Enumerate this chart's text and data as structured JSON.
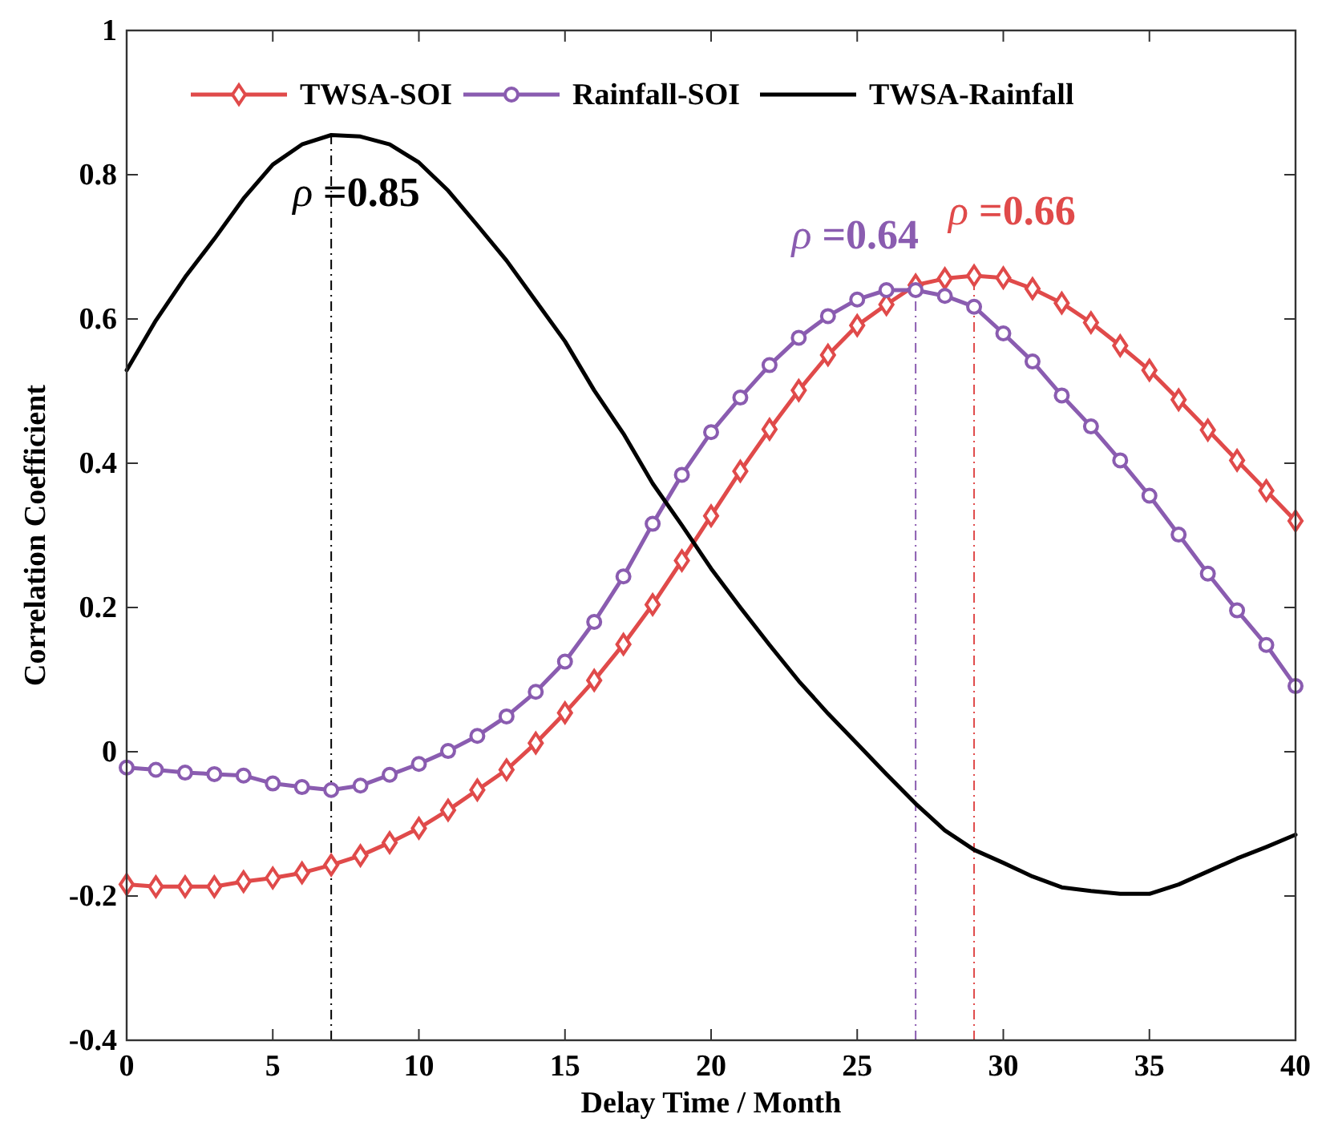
{
  "chart_data": {
    "type": "line",
    "xlabel": "Delay Time / Month",
    "ylabel": "Correlation Coefficient",
    "x": [
      0,
      1,
      2,
      3,
      4,
      5,
      6,
      7,
      8,
      9,
      10,
      11,
      12,
      13,
      14,
      15,
      16,
      17,
      18,
      19,
      20,
      21,
      22,
      23,
      24,
      25,
      26,
      27,
      28,
      29,
      30,
      31,
      32,
      33,
      34,
      35,
      36,
      37,
      38,
      39,
      40
    ],
    "series": [
      {
        "name": "TWSA-SOI",
        "color": "#e04a4a",
        "marker": "diamond",
        "values": [
          -0.184,
          -0.187,
          -0.187,
          -0.187,
          -0.18,
          -0.175,
          -0.168,
          -0.157,
          -0.144,
          -0.126,
          -0.106,
          -0.081,
          -0.053,
          -0.025,
          0.012,
          0.054,
          0.099,
          0.149,
          0.204,
          0.265,
          0.327,
          0.389,
          0.447,
          0.501,
          0.55,
          0.591,
          0.62,
          0.647,
          0.656,
          0.66,
          0.657,
          0.642,
          0.622,
          0.595,
          0.563,
          0.529,
          0.488,
          0.446,
          0.404,
          0.362,
          0.32
        ]
      },
      {
        "name": "Rainfall-SOI",
        "color": "#8a5cb0",
        "marker": "circle",
        "values": [
          -0.022,
          -0.025,
          -0.029,
          -0.031,
          -0.033,
          -0.044,
          -0.049,
          -0.053,
          -0.047,
          -0.032,
          -0.017,
          0.001,
          0.022,
          0.049,
          0.083,
          0.125,
          0.18,
          0.243,
          0.316,
          0.384,
          0.443,
          0.491,
          0.536,
          0.574,
          0.604,
          0.627,
          0.64,
          0.64,
          0.632,
          0.617,
          0.58,
          0.541,
          0.494,
          0.451,
          0.404,
          0.355,
          0.301,
          0.247,
          0.196,
          0.148,
          0.091
        ]
      },
      {
        "name": "TWSA-Rainfall",
        "color": "#000000",
        "marker": "none",
        "values": [
          0.529,
          0.598,
          0.658,
          0.711,
          0.767,
          0.814,
          0.842,
          0.855,
          0.853,
          0.842,
          0.817,
          0.778,
          0.73,
          0.681,
          0.625,
          0.569,
          0.501,
          0.441,
          0.372,
          0.314,
          0.254,
          0.2,
          0.148,
          0.098,
          0.053,
          0.011,
          -0.031,
          -0.072,
          -0.109,
          -0.136,
          -0.154,
          -0.173,
          -0.188,
          -0.193,
          -0.197,
          -0.197,
          -0.184,
          -0.166,
          -0.148,
          -0.132,
          -0.115
        ]
      }
    ],
    "xlim": [
      0,
      40
    ],
    "xticks": [
      0,
      5,
      10,
      15,
      20,
      25,
      30,
      35,
      40
    ],
    "ylim": [
      -0.4,
      1
    ],
    "yticks": [
      -0.4,
      -0.2,
      0,
      0.2,
      0.4,
      0.6,
      0.8,
      1
    ],
    "ref_lines": [
      {
        "axis": "x",
        "value": 7,
        "color": "#000000",
        "line_style": "dashed"
      },
      {
        "axis": "x",
        "value": 27,
        "color": "#8a5cb0",
        "line_style": "dashed"
      },
      {
        "axis": "x",
        "value": 29,
        "color": "#e04a4a",
        "line_style": "dashed"
      }
    ],
    "annotations": [
      {
        "text": "ρ =0.85",
        "x": 7,
        "y": 0.855
      },
      {
        "text": "ρ =0.64",
        "x": 27,
        "y": 0.64
      },
      {
        "text": "ρ =0.66",
        "x": 29,
        "y": 0.66
      }
    ],
    "legend": "top",
    "grid": false
  }
}
